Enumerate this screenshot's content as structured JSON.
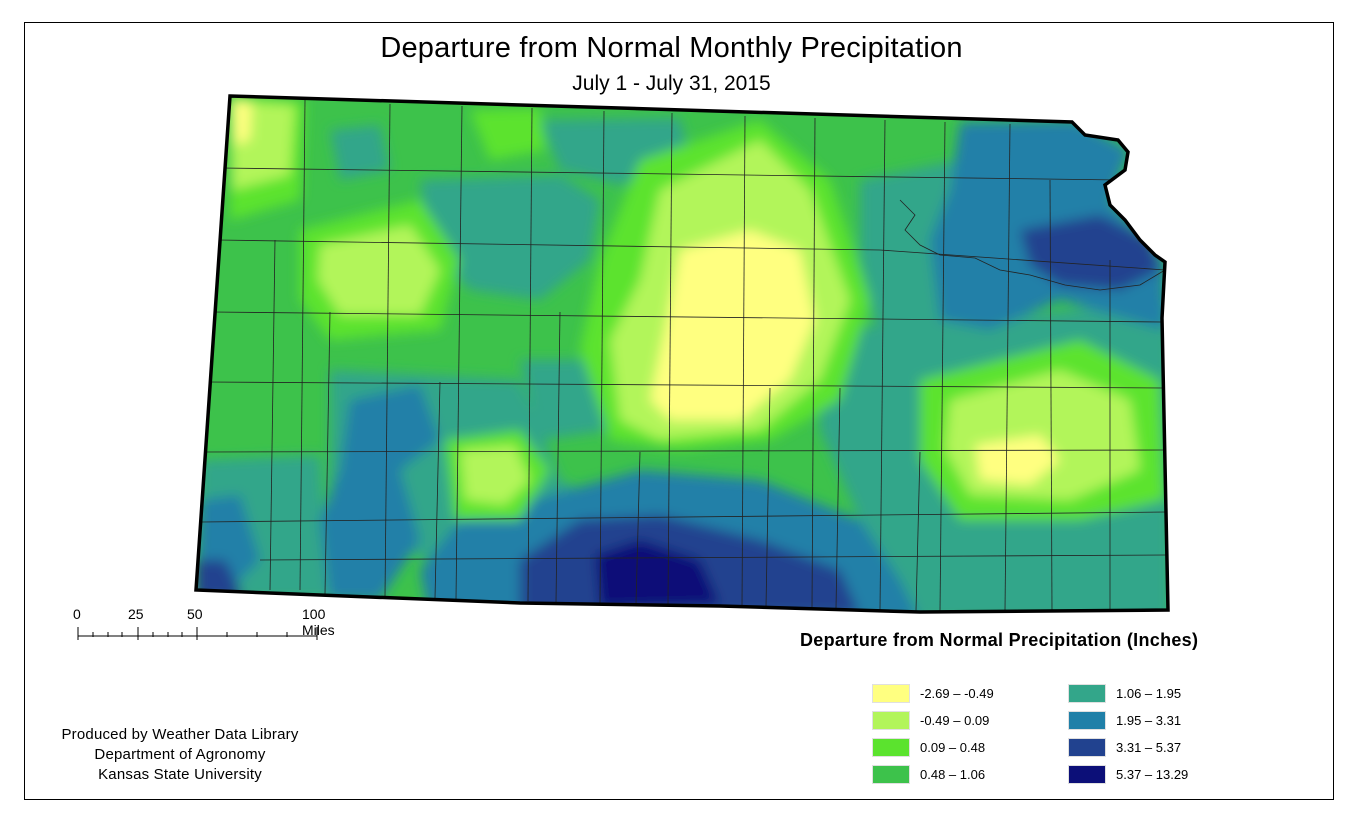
{
  "title": "Departure from Normal Monthly Precipitation",
  "subtitle": "July 1 - July 31, 2015",
  "scale_bar": {
    "labels": [
      "0",
      "25",
      "50",
      "100 Miles"
    ]
  },
  "legend": {
    "title": "Departure from Normal Precipitation (Inches)",
    "items": [
      {
        "label": "-2.69 – -0.49",
        "color": "#ffff80"
      },
      {
        "label": "-0.49 – 0.09",
        "color": "#b2f55a"
      },
      {
        "label": "0.09 – 0.48",
        "color": "#5be32e"
      },
      {
        "label": "0.48 – 1.06",
        "color": "#3dc24b"
      },
      {
        "label": "1.06 – 1.95",
        "color": "#33a68a"
      },
      {
        "label": "1.95 – 3.31",
        "color": "#2080a8"
      },
      {
        "label": "3.31 – 5.37",
        "color": "#21428f"
      },
      {
        "label": "5.37 – 13.29",
        "color": "#0c0f78"
      }
    ]
  },
  "credits": [
    "Produced by Weather Data Library",
    "Department of Agronomy",
    "Kansas State University"
  ]
}
